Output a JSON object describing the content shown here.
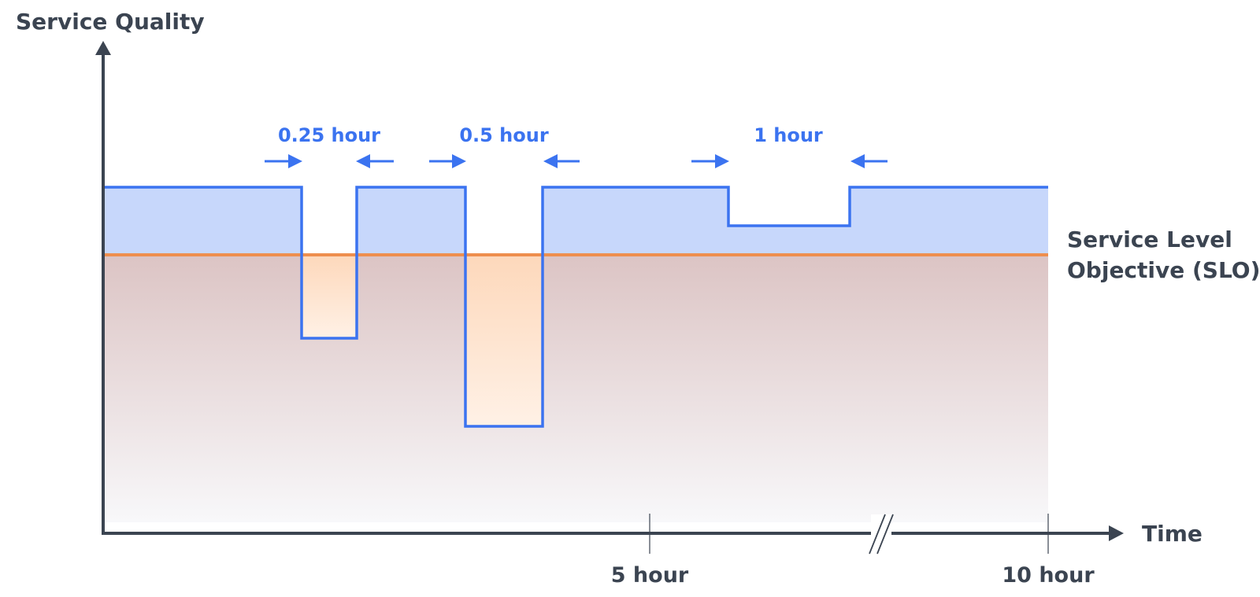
{
  "chart_data": {
    "type": "line",
    "title": "",
    "ylabel": "Service Quality",
    "xlabel": "Time",
    "x_ticks": [
      {
        "value": 5,
        "label": "5 hour"
      },
      {
        "value": 10,
        "label": "10 hour"
      }
    ],
    "axis_break_after_hour": 7.5,
    "slo": {
      "label_line1": "Service Level",
      "label_line2": "Objective (SLO)"
    },
    "dip_annotations": [
      {
        "label": "0.25 hour"
      },
      {
        "label": "0.5 hour"
      },
      {
        "label": "1 hour"
      }
    ],
    "colors": {
      "quality_line": "#3b73f0",
      "above_slo_fill": "#c7d7fb",
      "slo_line": "#ee8e4e",
      "breach_fill": "#fddcbf",
      "below_slo_gradient_top": "#dcc4c4",
      "below_slo_gradient_bottom": "#f8f8fa",
      "axis": "#3b4451",
      "annotation": "#3b73f0"
    }
  }
}
